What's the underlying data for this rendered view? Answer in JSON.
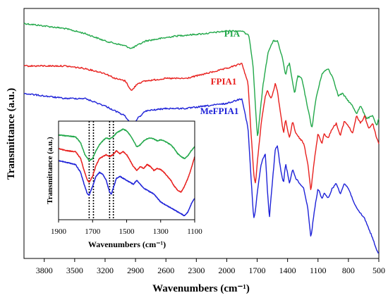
{
  "chart_data": [
    {
      "type": "line",
      "xlabel": "Wavenumbers (cm⁻¹)",
      "ylabel": "Transmittance (a.u.)",
      "xlim": [
        4000,
        500
      ],
      "x_ticks": [
        3800,
        3500,
        3200,
        2900,
        2600,
        2300,
        2000,
        1700,
        1400,
        1100,
        800,
        500
      ],
      "series": [
        {
          "name": "PIA",
          "color": "#22a84a",
          "points": [
            [
              4000,
              0.06
            ],
            [
              3800,
              0.07
            ],
            [
              3600,
              0.08
            ],
            [
              3400,
              0.1
            ],
            [
              3200,
              0.13
            ],
            [
              3000,
              0.15
            ],
            [
              2940,
              0.16
            ],
            [
              2800,
              0.13
            ],
            [
              2500,
              0.11
            ],
            [
              2200,
              0.1
            ],
            [
              2000,
              0.09
            ],
            [
              1850,
              0.09
            ],
            [
              1780,
              0.11
            ],
            [
              1740,
              0.23
            ],
            [
              1710,
              0.44
            ],
            [
              1695,
              0.52
            ],
            [
              1680,
              0.45
            ],
            [
              1640,
              0.3
            ],
            [
              1590,
              0.17
            ],
            [
              1540,
              0.13
            ],
            [
              1500,
              0.13
            ],
            [
              1450,
              0.2
            ],
            [
              1420,
              0.27
            ],
            [
              1400,
              0.23
            ],
            [
              1380,
              0.22
            ],
            [
              1350,
              0.3
            ],
            [
              1330,
              0.34
            ],
            [
              1300,
              0.27
            ],
            [
              1260,
              0.28
            ],
            [
              1200,
              0.4
            ],
            [
              1160,
              0.48
            ],
            [
              1120,
              0.36
            ],
            [
              1060,
              0.26
            ],
            [
              1000,
              0.24
            ],
            [
              950,
              0.28
            ],
            [
              900,
              0.35
            ],
            [
              860,
              0.34
            ],
            [
              820,
              0.36
            ],
            [
              760,
              0.39
            ],
            [
              720,
              0.42
            ],
            [
              680,
              0.39
            ],
            [
              620,
              0.44
            ],
            [
              560,
              0.43
            ],
            [
              520,
              0.47
            ],
            [
              500,
              0.44
            ]
          ]
        },
        {
          "name": "FPIA1",
          "color": "#e8201e",
          "points": [
            [
              4000,
              0.23
            ],
            [
              3800,
              0.23
            ],
            [
              3600,
              0.23
            ],
            [
              3400,
              0.24
            ],
            [
              3200,
              0.26
            ],
            [
              3100,
              0.28
            ],
            [
              3000,
              0.29
            ],
            [
              2940,
              0.33
            ],
            [
              2880,
              0.3
            ],
            [
              2800,
              0.29
            ],
            [
              2600,
              0.28
            ],
            [
              2400,
              0.28
            ],
            [
              2200,
              0.26
            ],
            [
              2000,
              0.24
            ],
            [
              1850,
              0.22
            ],
            [
              1790,
              0.3
            ],
            [
              1760,
              0.5
            ],
            [
              1730,
              0.68
            ],
            [
              1715,
              0.7
            ],
            [
              1700,
              0.62
            ],
            [
              1660,
              0.46
            ],
            [
              1620,
              0.35
            ],
            [
              1600,
              0.33
            ],
            [
              1560,
              0.36
            ],
            [
              1520,
              0.3
            ],
            [
              1500,
              0.33
            ],
            [
              1470,
              0.42
            ],
            [
              1440,
              0.5
            ],
            [
              1420,
              0.44
            ],
            [
              1400,
              0.49
            ],
            [
              1380,
              0.52
            ],
            [
              1350,
              0.45
            ],
            [
              1320,
              0.5
            ],
            [
              1280,
              0.52
            ],
            [
              1240,
              0.54
            ],
            [
              1200,
              0.62
            ],
            [
              1170,
              0.73
            ],
            [
              1140,
              0.62
            ],
            [
              1100,
              0.5
            ],
            [
              1060,
              0.54
            ],
            [
              1040,
              0.5
            ],
            [
              1000,
              0.52
            ],
            [
              960,
              0.48
            ],
            [
              920,
              0.46
            ],
            [
              880,
              0.51
            ],
            [
              840,
              0.45
            ],
            [
              800,
              0.47
            ],
            [
              760,
              0.5
            ],
            [
              720,
              0.43
            ],
            [
              680,
              0.46
            ],
            [
              640,
              0.43
            ],
            [
              600,
              0.48
            ],
            [
              560,
              0.46
            ],
            [
              520,
              0.52
            ],
            [
              500,
              0.54
            ]
          ]
        },
        {
          "name": "MeFPIA1",
          "color": "#1e22d8",
          "points": [
            [
              4000,
              0.34
            ],
            [
              3800,
              0.35
            ],
            [
              3600,
              0.36
            ],
            [
              3400,
              0.36
            ],
            [
              3200,
              0.39
            ],
            [
              3100,
              0.41
            ],
            [
              3000,
              0.43
            ],
            [
              2940,
              0.47
            ],
            [
              2880,
              0.44
            ],
            [
              2800,
              0.41
            ],
            [
              2600,
              0.4
            ],
            [
              2400,
              0.4
            ],
            [
              2200,
              0.39
            ],
            [
              2000,
              0.38
            ],
            [
              1850,
              0.36
            ],
            [
              1790,
              0.48
            ],
            [
              1760,
              0.68
            ],
            [
              1735,
              0.84
            ],
            [
              1720,
              0.82
            ],
            [
              1700,
              0.74
            ],
            [
              1660,
              0.62
            ],
            [
              1620,
              0.58
            ],
            [
              1600,
              0.72
            ],
            [
              1580,
              0.84
            ],
            [
              1560,
              0.74
            ],
            [
              1520,
              0.56
            ],
            [
              1500,
              0.55
            ],
            [
              1470,
              0.64
            ],
            [
              1440,
              0.7
            ],
            [
              1420,
              0.62
            ],
            [
              1400,
              0.66
            ],
            [
              1380,
              0.7
            ],
            [
              1350,
              0.64
            ],
            [
              1320,
              0.68
            ],
            [
              1280,
              0.7
            ],
            [
              1240,
              0.72
            ],
            [
              1200,
              0.8
            ],
            [
              1170,
              0.92
            ],
            [
              1140,
              0.82
            ],
            [
              1100,
              0.72
            ],
            [
              1060,
              0.76
            ],
            [
              1040,
              0.74
            ],
            [
              1000,
              0.76
            ],
            [
              960,
              0.72
            ],
            [
              920,
              0.7
            ],
            [
              880,
              0.74
            ],
            [
              840,
              0.7
            ],
            [
              800,
              0.72
            ],
            [
              760,
              0.76
            ],
            [
              720,
              0.8
            ],
            [
              680,
              0.82
            ],
            [
              640,
              0.84
            ],
            [
              600,
              0.88
            ],
            [
              560,
              0.92
            ],
            [
              520,
              0.97
            ],
            [
              500,
              0.98
            ]
          ]
        }
      ]
    },
    {
      "type": "line",
      "xlabel": "Wavenumbers (cm⁻¹)",
      "ylabel": "Transmittance (a.u.)",
      "xlim": [
        1900,
        1100
      ],
      "x_ticks": [
        1900,
        1700,
        1500,
        1300,
        1100
      ],
      "markers": [
        1720,
        1695,
        1600,
        1578
      ],
      "series": [
        {
          "name": "PIA",
          "color": "#22a84a",
          "points": [
            [
              1900,
              0.14
            ],
            [
              1850,
              0.15
            ],
            [
              1800,
              0.16
            ],
            [
              1770,
              0.22
            ],
            [
              1745,
              0.34
            ],
            [
              1720,
              0.4
            ],
            [
              1700,
              0.38
            ],
            [
              1680,
              0.3
            ],
            [
              1660,
              0.24
            ],
            [
              1640,
              0.2
            ],
            [
              1620,
              0.17
            ],
            [
              1600,
              0.18
            ],
            [
              1580,
              0.16
            ],
            [
              1560,
              0.12
            ],
            [
              1540,
              0.1
            ],
            [
              1520,
              0.08
            ],
            [
              1500,
              0.1
            ],
            [
              1480,
              0.14
            ],
            [
              1460,
              0.2
            ],
            [
              1440,
              0.26
            ],
            [
              1420,
              0.24
            ],
            [
              1400,
              0.2
            ],
            [
              1380,
              0.18
            ],
            [
              1360,
              0.17
            ],
            [
              1340,
              0.18
            ],
            [
              1320,
              0.2
            ],
            [
              1300,
              0.19
            ],
            [
              1280,
              0.2
            ],
            [
              1260,
              0.22
            ],
            [
              1240,
              0.24
            ],
            [
              1220,
              0.28
            ],
            [
              1200,
              0.33
            ],
            [
              1180,
              0.36
            ],
            [
              1160,
              0.38
            ],
            [
              1140,
              0.35
            ],
            [
              1120,
              0.3
            ],
            [
              1100,
              0.26
            ]
          ]
        },
        {
          "name": "FPIA1",
          "color": "#e8201e",
          "points": [
            [
              1900,
              0.28
            ],
            [
              1850,
              0.3
            ],
            [
              1800,
              0.31
            ],
            [
              1770,
              0.38
            ],
            [
              1750,
              0.5
            ],
            [
              1730,
              0.6
            ],
            [
              1720,
              0.62
            ],
            [
              1700,
              0.56
            ],
            [
              1680,
              0.45
            ],
            [
              1660,
              0.38
            ],
            [
              1640,
              0.36
            ],
            [
              1620,
              0.34
            ],
            [
              1600,
              0.36
            ],
            [
              1580,
              0.34
            ],
            [
              1560,
              0.3
            ],
            [
              1540,
              0.33
            ],
            [
              1520,
              0.31
            ],
            [
              1500,
              0.34
            ],
            [
              1480,
              0.4
            ],
            [
              1460,
              0.46
            ],
            [
              1440,
              0.5
            ],
            [
              1420,
              0.46
            ],
            [
              1400,
              0.48
            ],
            [
              1380,
              0.44
            ],
            [
              1360,
              0.46
            ],
            [
              1340,
              0.5
            ],
            [
              1320,
              0.48
            ],
            [
              1300,
              0.49
            ],
            [
              1280,
              0.52
            ],
            [
              1260,
              0.56
            ],
            [
              1240,
              0.6
            ],
            [
              1220,
              0.66
            ],
            [
              1200,
              0.7
            ],
            [
              1180,
              0.72
            ],
            [
              1160,
              0.66
            ],
            [
              1140,
              0.58
            ],
            [
              1120,
              0.48
            ],
            [
              1100,
              0.36
            ]
          ]
        },
        {
          "name": "MeFPIA1",
          "color": "#1e22d8",
          "points": [
            [
              1900,
              0.4
            ],
            [
              1850,
              0.42
            ],
            [
              1800,
              0.44
            ],
            [
              1770,
              0.52
            ],
            [
              1750,
              0.64
            ],
            [
              1730,
              0.74
            ],
            [
              1720,
              0.75
            ],
            [
              1700,
              0.66
            ],
            [
              1680,
              0.56
            ],
            [
              1660,
              0.52
            ],
            [
              1640,
              0.54
            ],
            [
              1620,
              0.6
            ],
            [
              1600,
              0.72
            ],
            [
              1590,
              0.74
            ],
            [
              1575,
              0.66
            ],
            [
              1560,
              0.58
            ],
            [
              1540,
              0.56
            ],
            [
              1520,
              0.58
            ],
            [
              1500,
              0.6
            ],
            [
              1480,
              0.62
            ],
            [
              1460,
              0.64
            ],
            [
              1440,
              0.6
            ],
            [
              1420,
              0.64
            ],
            [
              1400,
              0.68
            ],
            [
              1380,
              0.7
            ],
            [
              1360,
              0.72
            ],
            [
              1340,
              0.74
            ],
            [
              1320,
              0.78
            ],
            [
              1300,
              0.82
            ],
            [
              1280,
              0.84
            ],
            [
              1260,
              0.86
            ],
            [
              1240,
              0.88
            ],
            [
              1220,
              0.9
            ],
            [
              1200,
              0.92
            ],
            [
              1180,
              0.94
            ],
            [
              1160,
              0.96
            ],
            [
              1140,
              0.92
            ],
            [
              1120,
              0.84
            ],
            [
              1100,
              0.78
            ]
          ]
        }
      ]
    }
  ]
}
